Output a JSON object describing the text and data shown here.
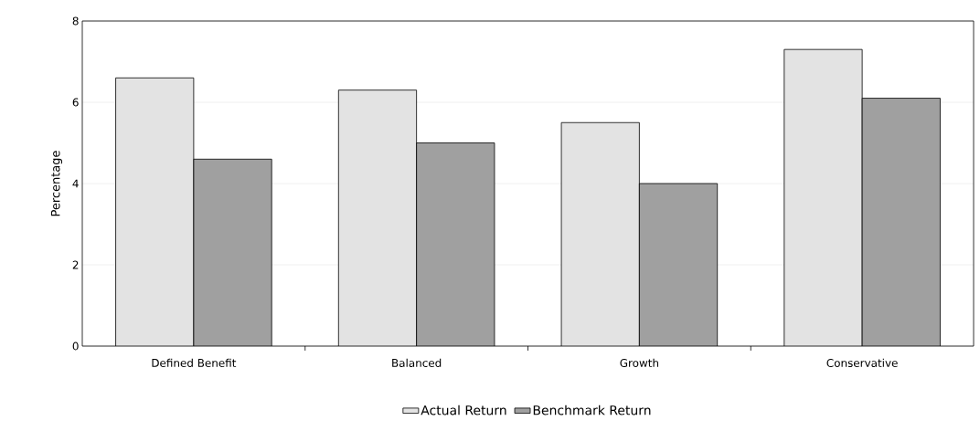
{
  "chart_data": {
    "type": "bar",
    "ylabel": "Percentage",
    "categories": [
      "Defined Benefit",
      "Balanced",
      "Growth",
      "Conservative"
    ],
    "series": [
      {
        "name": "Actual Return",
        "color": "#e3e3e3",
        "values": [
          6.6,
          6.3,
          5.5,
          7.3
        ]
      },
      {
        "name": "Benchmark Return",
        "color": "#a0a0a0",
        "values": [
          4.6,
          5.0,
          4.0,
          6.1
        ]
      }
    ],
    "ylim": [
      0,
      8
    ],
    "yticks": [
      0,
      2,
      4,
      6,
      8
    ],
    "grid": "y",
    "legend": "bottom"
  }
}
